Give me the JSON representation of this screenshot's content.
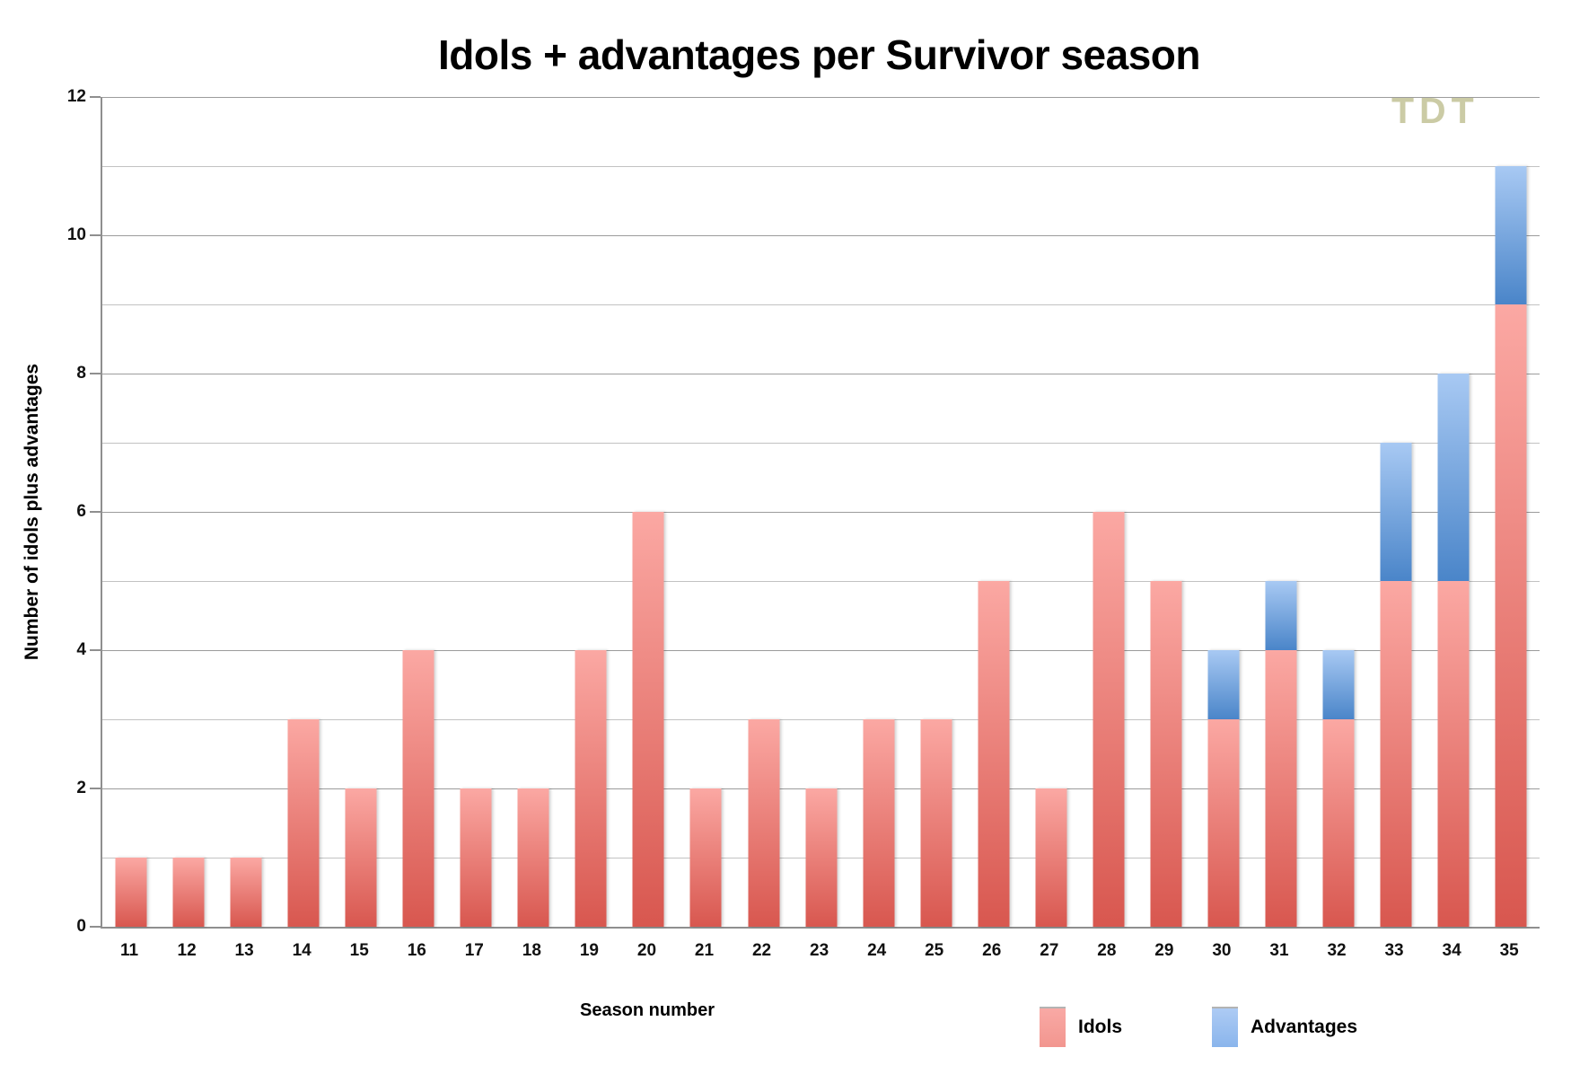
{
  "title": "Idols + advantages per Survivor season",
  "watermark": "TDT",
  "chart_data": {
    "type": "bar",
    "stacked": true,
    "title": "Idols + advantages per Survivor season",
    "xlabel": "Season number",
    "ylabel": "Number of idols plus advantages",
    "categories": [
      "11",
      "12",
      "13",
      "14",
      "15",
      "16",
      "17",
      "18",
      "19",
      "20",
      "21",
      "22",
      "23",
      "24",
      "25",
      "26",
      "27",
      "28",
      "29",
      "30",
      "31",
      "32",
      "33",
      "34",
      "35"
    ],
    "series": [
      {
        "name": "Idols",
        "values": [
          1,
          1,
          1,
          3,
          2,
          4,
          2,
          2,
          4,
          6,
          2,
          3,
          2,
          3,
          3,
          5,
          2,
          6,
          5,
          3,
          4,
          3,
          5,
          5,
          9
        ],
        "color_top": "#fba8a3",
        "color_bottom": "#d8574f"
      },
      {
        "name": "Advantages",
        "values": [
          0,
          0,
          0,
          0,
          0,
          0,
          0,
          0,
          0,
          0,
          0,
          0,
          0,
          0,
          0,
          0,
          0,
          0,
          0,
          1,
          1,
          1,
          2,
          3,
          2
        ],
        "color_top": "#a8c9f3",
        "color_bottom": "#4a85c9"
      }
    ],
    "ylim": [
      0,
      12
    ],
    "yticks": [
      0,
      2,
      4,
      6,
      8,
      10,
      12
    ],
    "minor_gridlines_every": 1,
    "grid": "horizontal",
    "legend_position": "bottom-right",
    "colors": {
      "grid_major": "#9c9c9c",
      "grid_minor": "#c2c2c2",
      "axis": "#8f8f8f",
      "text": "#111111",
      "watermark": "#cbcba5"
    }
  }
}
